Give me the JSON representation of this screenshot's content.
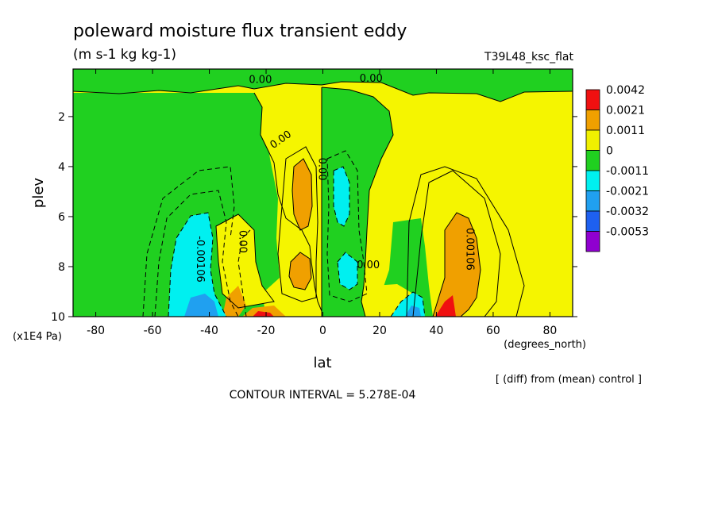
{
  "chart_data": {
    "type": "heatmap",
    "title": "poleward moisture flux transient eddy",
    "subtitle": "(m s-1 kg kg-1)",
    "dataset_label": "T39L48_ksc_flat",
    "xlabel": "lat",
    "x_units": "(degrees_north)",
    "ylabel": "plev",
    "y_units": "(x1E4 Pa)",
    "xlim": [
      -88,
      88
    ],
    "ylim": [
      0.1,
      10
    ],
    "y_inverted": true,
    "x_ticks": [
      -80,
      -60,
      -40,
      -20,
      0,
      20,
      40,
      60,
      80
    ],
    "y_ticks": [
      2,
      4,
      6,
      8,
      10
    ],
    "footer_note": "[ (diff) from (mean) control ]",
    "contour_interval_text": "CONTOUR INTERVAL = 5.278E-04",
    "contour_labels": [
      {
        "text": "0.00",
        "lat": -22,
        "plev": 0.5
      },
      {
        "text": "0.00",
        "lat": 17,
        "plev": 0.45
      },
      {
        "text": "0.00",
        "lat": -15,
        "plev": 2.9
      },
      {
        "text": "0.00",
        "lat": 0,
        "plev": 4.1
      },
      {
        "text": "0.00",
        "lat": -28,
        "plev": 7.0
      },
      {
        "text": "0.00",
        "lat": 16,
        "plev": 7.9
      },
      {
        "text": "-0.00106",
        "lat": -43,
        "plev": 7.7
      },
      {
        "text": "0.00106",
        "lat": 52,
        "plev": 7.3
      }
    ],
    "legend": {
      "placement": "right",
      "levels": [
        "0.0042",
        "0.0021",
        "0.0011",
        "0",
        "-0.0011",
        "-0.0021",
        "-0.0032",
        "-0.0053"
      ],
      "colors": [
        "#f01010",
        "#f0a000",
        "#f0f000",
        "#20d020",
        "#00f0f0",
        "#20a0f0",
        "#1e60f0",
        "#9000d0"
      ]
    },
    "fills": {
      "yellow": "#f5f500",
      "green": "#20d020",
      "orange": "#f0a000",
      "cyan": "#00f0f0",
      "blue": "#20a0f0",
      "red": "#f01010"
    }
  }
}
